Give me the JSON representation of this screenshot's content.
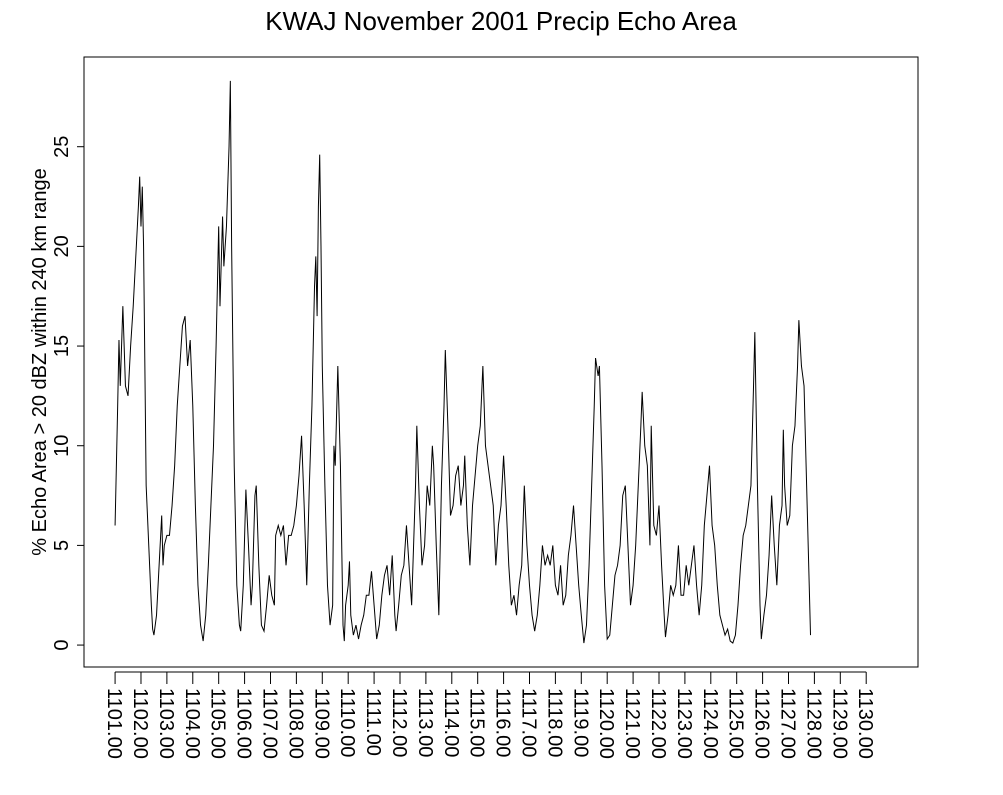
{
  "chart_data": {
    "type": "line",
    "title": "KWAJ November 2001 Precip Echo Area",
    "ylabel": "% Echo Area > 20 dBZ within 240 km range",
    "xlim": [
      1099.8,
      1132.0
    ],
    "ylim": [
      -1.1,
      29.5
    ],
    "yticks": [
      0,
      5,
      10,
      15,
      20,
      25
    ],
    "xticks": [
      {
        "value": 1101,
        "label": "1101.00"
      },
      {
        "value": 1102,
        "label": "1102.00"
      },
      {
        "value": 1103,
        "label": "1103.00"
      },
      {
        "value": 1104,
        "label": "1104.00"
      },
      {
        "value": 1105,
        "label": "1105.00"
      },
      {
        "value": 1106,
        "label": "1106.00"
      },
      {
        "value": 1107,
        "label": "1107.00"
      },
      {
        "value": 1108,
        "label": "1108.00"
      },
      {
        "value": 1109,
        "label": "1109.00"
      },
      {
        "value": 1110,
        "label": "1110.00"
      },
      {
        "value": 1111,
        "label": "1111.00"
      },
      {
        "value": 1112,
        "label": "1112.00"
      },
      {
        "value": 1113,
        "label": "1113.00"
      },
      {
        "value": 1114,
        "label": "1114.00"
      },
      {
        "value": 1115,
        "label": "1115.00"
      },
      {
        "value": 1116,
        "label": "1116.00"
      },
      {
        "value": 1117,
        "label": "1117.00"
      },
      {
        "value": 1118,
        "label": "1118.00"
      },
      {
        "value": 1119,
        "label": "1119.00"
      },
      {
        "value": 1120,
        "label": "1120.00"
      },
      {
        "value": 1121,
        "label": "1121.00"
      },
      {
        "value": 1122,
        "label": "1122.00"
      },
      {
        "value": 1123,
        "label": "1123.00"
      },
      {
        "value": 1124,
        "label": "1124.00"
      },
      {
        "value": 1125,
        "label": "1125.00"
      },
      {
        "value": 1126,
        "label": "1126.00"
      },
      {
        "value": 1127,
        "label": "1127.00"
      },
      {
        "value": 1128,
        "label": "1128.00"
      },
      {
        "value": 1129,
        "label": "1129.00"
      },
      {
        "value": 1130,
        "label": "1130.00"
      }
    ],
    "color": "#000000",
    "x": [
      1101.0,
      1101.1,
      1101.15,
      1101.2,
      1101.3,
      1101.4,
      1101.5,
      1101.6,
      1101.7,
      1101.8,
      1101.9,
      1101.95,
      1102.0,
      1102.05,
      1102.1,
      1102.2,
      1102.3,
      1102.4,
      1102.45,
      1102.5,
      1102.6,
      1102.7,
      1102.8,
      1102.85,
      1102.9,
      1103.0,
      1103.1,
      1103.2,
      1103.3,
      1103.4,
      1103.5,
      1103.6,
      1103.7,
      1103.8,
      1103.9,
      1104.0,
      1104.1,
      1104.2,
      1104.3,
      1104.4,
      1104.5,
      1104.6,
      1104.7,
      1104.8,
      1104.9,
      1105.0,
      1105.05,
      1105.15,
      1105.2,
      1105.3,
      1105.4,
      1105.45,
      1105.5,
      1105.6,
      1105.7,
      1105.8,
      1105.85,
      1105.95,
      1106.05,
      1106.15,
      1106.25,
      1106.3,
      1106.4,
      1106.45,
      1106.55,
      1106.65,
      1106.75,
      1106.85,
      1106.95,
      1107.05,
      1107.15,
      1107.2,
      1107.3,
      1107.4,
      1107.5,
      1107.6,
      1107.7,
      1107.8,
      1107.9,
      1108.0,
      1108.1,
      1108.2,
      1108.3,
      1108.4,
      1108.5,
      1108.6,
      1108.7,
      1108.75,
      1108.8,
      1108.85,
      1108.9,
      1108.95,
      1109.0,
      1109.1,
      1109.2,
      1109.3,
      1109.4,
      1109.45,
      1109.5,
      1109.6,
      1109.7,
      1109.8,
      1109.85,
      1109.9,
      1110.0,
      1110.05,
      1110.1,
      1110.2,
      1110.3,
      1110.4,
      1110.5,
      1110.6,
      1110.7,
      1110.8,
      1110.9,
      1111.0,
      1111.1,
      1111.2,
      1111.3,
      1111.4,
      1111.5,
      1111.6,
      1111.7,
      1111.8,
      1111.85,
      1111.95,
      1112.05,
      1112.15,
      1112.25,
      1112.35,
      1112.45,
      1112.5,
      1112.6,
      1112.65,
      1112.75,
      1112.85,
      1112.95,
      1113.05,
      1113.15,
      1113.25,
      1113.3,
      1113.4,
      1113.5,
      1113.6,
      1113.7,
      1113.75,
      1113.85,
      1113.95,
      1114.05,
      1114.15,
      1114.25,
      1114.35,
      1114.45,
      1114.5,
      1114.6,
      1114.7,
      1114.8,
      1114.9,
      1115.0,
      1115.1,
      1115.2,
      1115.3,
      1115.4,
      1115.5,
      1115.6,
      1115.7,
      1115.8,
      1115.9,
      1116.0,
      1116.1,
      1116.2,
      1116.3,
      1116.4,
      1116.5,
      1116.6,
      1116.7,
      1116.8,
      1116.9,
      1117.0,
      1117.1,
      1117.2,
      1117.3,
      1117.4,
      1117.5,
      1117.6,
      1117.7,
      1117.8,
      1117.9,
      1118.0,
      1118.1,
      1118.2,
      1118.3,
      1118.4,
      1118.5,
      1118.6,
      1118.7,
      1118.8,
      1118.9,
      1119.0,
      1119.1,
      1119.2,
      1119.3,
      1119.4,
      1119.5,
      1119.55,
      1119.65,
      1119.7,
      1119.8,
      1119.9,
      1120.0,
      1120.1,
      1120.2,
      1120.3,
      1120.4,
      1120.5,
      1120.6,
      1120.7,
      1120.8,
      1120.9,
      1121.0,
      1121.1,
      1121.2,
      1121.3,
      1121.35,
      1121.45,
      1121.55,
      1121.65,
      1121.7,
      1121.8,
      1121.9,
      1122.0,
      1122.1,
      1122.2,
      1122.25,
      1122.35,
      1122.45,
      1122.55,
      1122.65,
      1122.75,
      1122.85,
      1122.95,
      1123.05,
      1123.15,
      1123.25,
      1123.35,
      1123.45,
      1123.55,
      1123.65,
      1123.75,
      1123.85,
      1123.95,
      1124.05,
      1124.15,
      1124.25,
      1124.35,
      1124.45,
      1124.55,
      1124.65,
      1124.75,
      1124.85,
      1124.95,
      1125.05,
      1125.15,
      1125.25,
      1125.35,
      1125.45,
      1125.55,
      1125.65,
      1125.7,
      1125.8,
      1125.9,
      1125.95,
      1126.05,
      1126.15,
      1126.25,
      1126.35,
      1126.45,
      1126.55,
      1126.65,
      1126.75,
      1126.8,
      1126.85,
      1126.95,
      1127.05,
      1127.15,
      1127.25,
      1127.35,
      1127.4,
      1127.5,
      1127.6,
      1127.7,
      1127.8,
      1127.85
    ],
    "values": [
      6,
      12,
      15.3,
      13,
      17,
      13,
      12.5,
      15,
      17,
      19.5,
      22,
      23.5,
      21,
      23,
      20,
      8,
      5,
      2,
      0.8,
      0.5,
      1.5,
      4,
      6.5,
      4,
      5,
      5.5,
      5.5,
      7,
      9,
      12,
      14,
      16,
      16.5,
      14,
      15.3,
      12,
      7,
      3,
      1,
      0.2,
      1.5,
      4,
      7,
      10,
      15,
      21,
      17,
      21.5,
      19,
      21,
      25,
      28.3,
      20,
      9,
      3,
      1,
      0.7,
      3,
      7.8,
      5,
      2,
      3,
      7.5,
      8,
      4,
      1,
      0.7,
      2,
      3.5,
      2.5,
      2,
      5.5,
      6,
      5.5,
      6,
      4,
      5.5,
      5.5,
      6,
      7,
      8.5,
      10.5,
      7,
      3,
      8,
      12,
      18,
      19.5,
      16.5,
      22,
      24.6,
      20,
      14,
      8,
      3,
      1,
      2,
      10,
      9,
      14,
      9,
      1,
      0.2,
      2,
      3,
      4.2,
      1.5,
      0.5,
      1,
      0.3,
      1,
      1.5,
      2.5,
      2.5,
      3.7,
      2,
      0.3,
      1,
      2.5,
      3.5,
      4,
      2.5,
      4.5,
      1.5,
      0.7,
      2,
      3.5,
      4,
      6,
      4,
      2,
      4,
      8,
      11,
      7,
      4,
      5,
      8,
      7,
      10,
      9,
      5,
      1.5,
      8,
      12,
      14.8,
      11,
      6.5,
      7,
      8.5,
      9,
      7,
      8,
      9.5,
      6,
      4,
      7,
      8.5,
      10,
      11,
      14,
      10,
      9,
      8,
      7,
      4,
      6,
      7,
      9.5,
      7,
      4,
      2,
      2.5,
      1.5,
      3,
      4,
      8,
      5,
      3,
      1.5,
      0.7,
      1.5,
      3,
      5,
      4,
      4.5,
      4,
      5,
      3,
      2.5,
      4,
      2,
      2.5,
      4.5,
      5.5,
      7,
      5,
      3,
      1.5,
      0.1,
      1,
      4,
      8,
      12,
      14.4,
      13.5,
      14,
      9,
      3,
      0.3,
      0.5,
      2,
      3.5,
      4,
      5,
      7.5,
      8,
      5,
      2,
      3,
      5,
      8,
      11,
      12.7,
      10,
      9,
      5,
      11,
      6,
      5.5,
      7,
      4,
      1.5,
      0.4,
      1.5,
      3,
      2.5,
      3,
      5,
      2.5,
      2.5,
      4,
      3,
      4,
      5,
      3,
      1.5,
      3,
      6,
      7.5,
      9,
      6,
      5,
      3,
      1.5,
      1,
      0.5,
      0.8,
      0.2,
      0.1,
      0.5,
      2,
      4,
      5.5,
      6,
      7,
      8,
      13,
      15.7,
      8,
      2,
      0.3,
      1.5,
      2.5,
      4.5,
      7.5,
      5,
      3,
      6,
      7,
      10.8,
      8,
      6,
      6.5,
      10,
      11,
      14,
      16.3,
      14,
      13,
      8,
      3,
      0.5
    ]
  }
}
